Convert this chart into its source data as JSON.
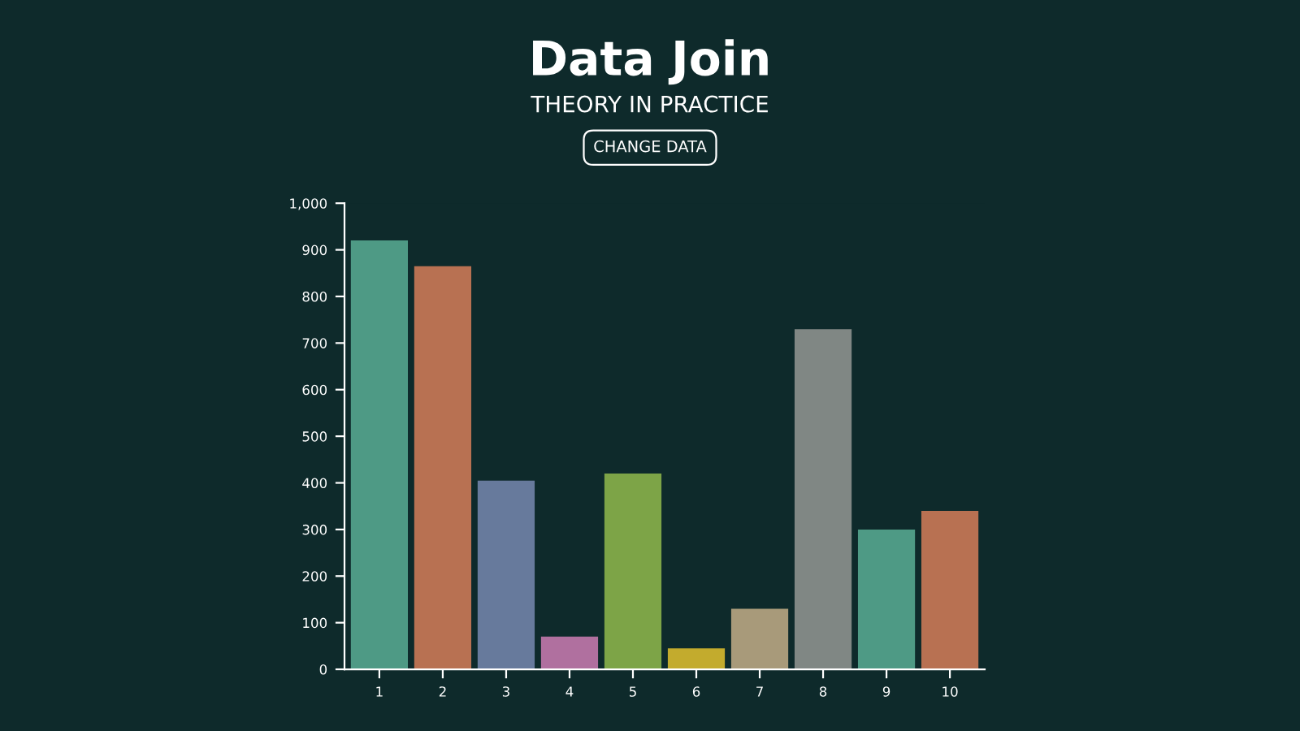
{
  "chart_data": {
    "type": "bar",
    "title": "Data Join",
    "subtitle": "THEORY IN PRACTICE",
    "annotations": [
      "CHANGE DATA"
    ],
    "categories": [
      "1",
      "2",
      "3",
      "4",
      "5",
      "6",
      "7",
      "8",
      "9",
      "10"
    ],
    "values": [
      920,
      865,
      405,
      70,
      420,
      45,
      130,
      730,
      300,
      340
    ],
    "colors": [
      "#4e9a85",
      "#b87152",
      "#677a9c",
      "#b0709f",
      "#7da447",
      "#c3ab2d",
      "#a89a7a",
      "#808784",
      "#4e9a85",
      "#b87152"
    ],
    "ylim": [
      0,
      1000
    ],
    "yticks": [
      0,
      100,
      200,
      300,
      400,
      500,
      600,
      700,
      800,
      900,
      {
        "value": 1000,
        "label": "1,000"
      }
    ],
    "grid": false,
    "legend": false
  }
}
